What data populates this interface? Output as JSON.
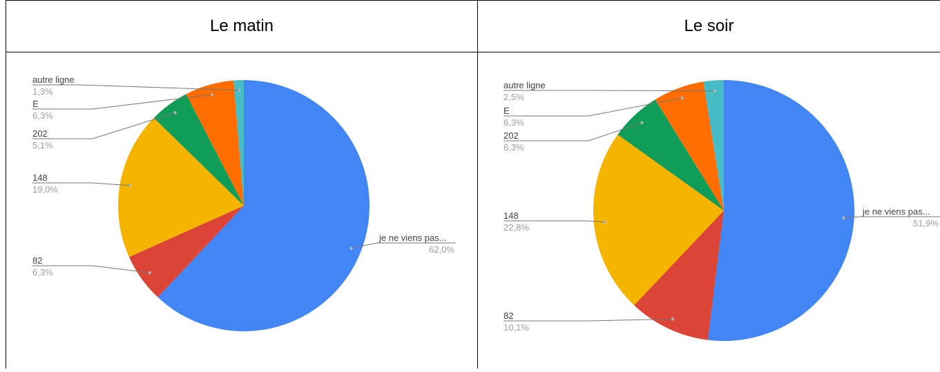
{
  "table": {
    "headers": [
      "Le matin",
      "Le soir"
    ]
  },
  "colors": {
    "je ne viens pas...": "#4285f4",
    "82": "#db4437",
    "148": "#f4b400",
    "202": "#0f9d58",
    "E": "#ff6d00",
    "autre ligne": "#46bdc6"
  },
  "chart_data": [
    {
      "type": "pie",
      "slices": [
        {
          "label": "je ne viens pas...",
          "value": 62.0,
          "pct_label": "62,0%"
        },
        {
          "label": "82",
          "value": 6.3,
          "pct_label": "6,3%"
        },
        {
          "label": "148",
          "value": 19.0,
          "pct_label": "19,0%"
        },
        {
          "label": "202",
          "value": 5.1,
          "pct_label": "5,1%"
        },
        {
          "label": "E",
          "value": 6.3,
          "pct_label": "6,3%"
        },
        {
          "label": "autre ligne",
          "value": 1.3,
          "pct_label": "1,3%"
        }
      ]
    },
    {
      "type": "pie",
      "slices": [
        {
          "label": "je ne viens pas...",
          "value": 51.9,
          "pct_label": "51,9%"
        },
        {
          "label": "82",
          "value": 10.1,
          "pct_label": "10,1%"
        },
        {
          "label": "148",
          "value": 22.8,
          "pct_label": "22,8%"
        },
        {
          "label": "202",
          "value": 6.3,
          "pct_label": "6,3%"
        },
        {
          "label": "E",
          "value": 6.3,
          "pct_label": "6,3%"
        },
        {
          "label": "autre ligne",
          "value": 2.5,
          "pct_label": "2,5%"
        }
      ]
    }
  ]
}
